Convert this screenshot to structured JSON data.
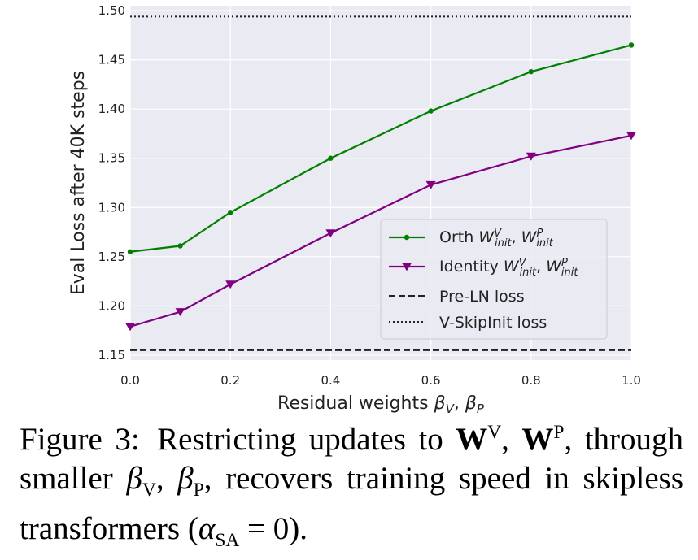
{
  "chart_data": {
    "type": "line",
    "xlabel": "Residual weights βV, βP",
    "ylabel": "Eval Loss after 40K steps",
    "xlim": [
      0.0,
      1.0
    ],
    "ylim": [
      1.145,
      1.505
    ],
    "xticks": [
      "0.0",
      "0.2",
      "0.4",
      "0.6",
      "0.8",
      "1.0"
    ],
    "yticks": [
      "1.15",
      "1.20",
      "1.25",
      "1.30",
      "1.35",
      "1.40",
      "1.45",
      "1.50"
    ],
    "grid": true,
    "legend_position": "lower-right",
    "series": [
      {
        "name": "Orth W^V_init, W^P_init",
        "label_main": "Orth W",
        "color": "#008000",
        "marker": "circle",
        "x": [
          0.0,
          0.1,
          0.2,
          0.4,
          0.6,
          0.8,
          1.0
        ],
        "values": [
          1.255,
          1.261,
          1.295,
          1.35,
          1.398,
          1.438,
          1.465
        ]
      },
      {
        "name": "Identity W^V_init, W^P_init",
        "label_main": "Identity W",
        "color": "#800080",
        "marker": "triangle-down",
        "x": [
          0.0,
          0.1,
          0.2,
          0.4,
          0.6,
          0.8,
          1.0
        ],
        "values": [
          1.179,
          1.194,
          1.222,
          1.274,
          1.323,
          1.352,
          1.373
        ]
      }
    ],
    "reference_lines": [
      {
        "name": "Pre-LN loss",
        "value": 1.155,
        "style": "dashed",
        "color": "#222222"
      },
      {
        "name": "V-SkipInit loss",
        "value": 1.494,
        "style": "dotted",
        "color": "#222222"
      }
    ]
  },
  "caption": {
    "lead": "Figure 3:",
    "text_1": "Restricting updates to",
    "wv": "W",
    "wv_sup": "V",
    "comma_1": ",",
    "wp": "W",
    "wp_sup": "P",
    "comma_2": ",",
    "text_2": "through smaller",
    "bv": "β",
    "bv_sub": "V",
    "comma_3": ",",
    "bp": "β",
    "bp_sub": "P",
    "text_3": ", recovers training speed in skipless transformers (",
    "alpha": "α",
    "alpha_sub": "SA",
    "text_4": " = 0)."
  }
}
